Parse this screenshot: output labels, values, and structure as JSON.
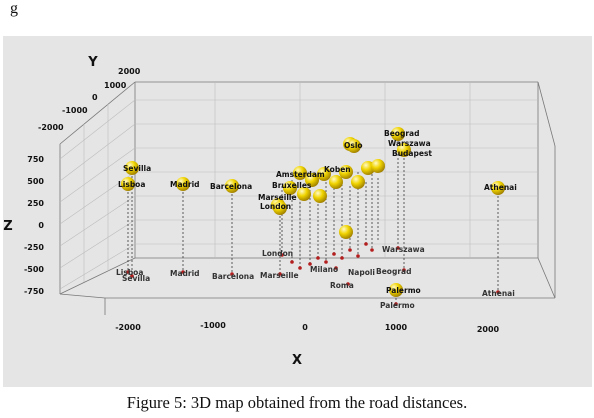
{
  "top_text": "g",
  "caption": "Figure 5: 3D map obtained from the road distances.",
  "axes": {
    "x_label": "X",
    "y_label": "Y",
    "z_label": "Z",
    "x_ticks": [
      "-2000",
      "-1000",
      "0",
      "1000",
      "2000"
    ],
    "y_ticks": [
      "2000",
      "1000",
      "0",
      "-1000",
      "-2000"
    ],
    "z_ticks": [
      "750",
      "500",
      "250",
      "0",
      "-250",
      "-500",
      "-750"
    ]
  },
  "colors": {
    "background": "#e5e5e5",
    "sphere": "#e8c800",
    "projection": "#b41e1e"
  },
  "cities": {
    "sevilla": "Sevilla",
    "lisboa": "Lisboa",
    "madrid": "Madrid",
    "barcelona": "Barcelona",
    "oslo": "Oslo",
    "beograd": "Beograd",
    "warszawa": "Warszawa",
    "budapest": "Budapest",
    "athenai": "Athenai",
    "amsterdam": "Amsterdam",
    "bruxelles": "Bruxelles",
    "koben": "Koben",
    "marseille": "Marseille",
    "london": "London",
    "palermo": "Palermo",
    "roma": "Roma",
    "napoli": "Napoli",
    "milano": "Milano"
  },
  "projections": {
    "lisboa": "Lisboa",
    "sevilla": "Sevilla",
    "madrid": "Madrid",
    "barcelona": "Barcelona",
    "marseille": "Marseille",
    "london": "London",
    "milano": "Milano",
    "roma": "Roma",
    "napoli": "Napoli",
    "warszawa": "Warszawa",
    "beograd": "Beograd",
    "palermo": "Palermo",
    "athenai": "Athenai"
  }
}
